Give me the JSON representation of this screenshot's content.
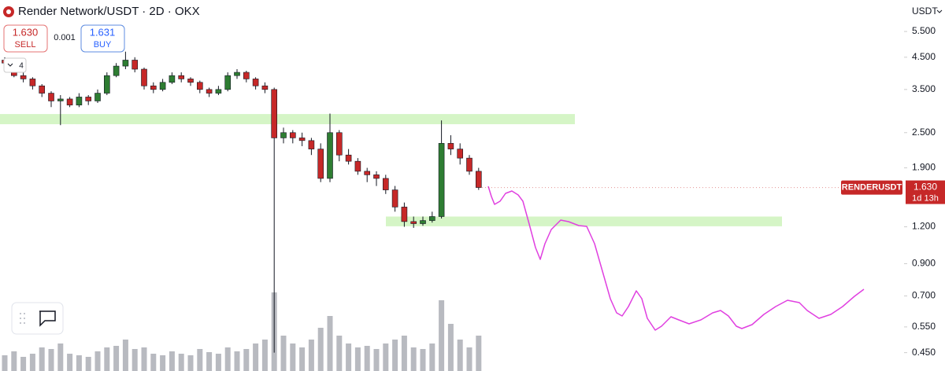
{
  "chart_data": {
    "type": "candlestick",
    "title": "Render Network/USDT · 2D · OKX",
    "sell_price": "1.630",
    "sell_label": "SELL",
    "spread": "0.001",
    "buy_price": "1.631",
    "buy_label": "BUY",
    "interval_count": "4",
    "currency": "USDT",
    "symbol": "RENDERUSDT",
    "last_price": {
      "value": 1.63,
      "label": "1.630"
    },
    "countdown": "1d 13h",
    "log_scale": true,
    "grid": false,
    "ylim": [
      0.39,
      7.03
    ],
    "yticks": [
      {
        "value": 5.5,
        "label": "5.500"
      },
      {
        "value": 4.5,
        "label": "4.500"
      },
      {
        "value": 3.5,
        "label": "3.500"
      },
      {
        "value": 2.5,
        "label": "2.500"
      },
      {
        "value": 1.9,
        "label": "1.900"
      },
      {
        "value": 1.2,
        "label": "1.200"
      },
      {
        "value": 0.9,
        "label": "0.900"
      },
      {
        "value": 0.7,
        "label": "0.700"
      },
      {
        "value": 0.55,
        "label": "0.550"
      },
      {
        "value": 0.45,
        "label": "0.450"
      }
    ],
    "up_color": "#2e7d32",
    "down_color": "#c62828",
    "volume_color": "#b8bac0",
    "zone_color": "#d5f5c6",
    "label_color": "#c62828",
    "zones": [
      {
        "low": 2.67,
        "high": 2.89
      },
      {
        "low": 1.205,
        "high": 1.3
      }
    ],
    "candles": [
      {
        "o": 4.4,
        "h": 4.5,
        "l": 4.2,
        "c": 4.3
      },
      {
        "o": 4.3,
        "h": 4.35,
        "l": 3.85,
        "c": 3.9
      },
      {
        "o": 3.9,
        "h": 4.0,
        "l": 3.7,
        "c": 3.8
      },
      {
        "o": 3.8,
        "h": 3.85,
        "l": 3.5,
        "c": 3.6
      },
      {
        "o": 3.6,
        "h": 3.65,
        "l": 3.3,
        "c": 3.4
      },
      {
        "o": 3.4,
        "h": 3.45,
        "l": 3.05,
        "c": 3.2
      },
      {
        "o": 3.2,
        "h": 3.35,
        "l": 2.65,
        "c": 3.25
      },
      {
        "o": 3.25,
        "h": 3.3,
        "l": 3.05,
        "c": 3.1
      },
      {
        "o": 3.1,
        "h": 3.4,
        "l": 3.05,
        "c": 3.3
      },
      {
        "o": 3.3,
        "h": 3.35,
        "l": 3.1,
        "c": 3.2
      },
      {
        "o": 3.2,
        "h": 3.5,
        "l": 3.15,
        "c": 3.4
      },
      {
        "o": 3.4,
        "h": 4.0,
        "l": 3.35,
        "c": 3.9
      },
      {
        "o": 3.9,
        "h": 4.3,
        "l": 3.85,
        "c": 4.2
      },
      {
        "o": 4.2,
        "h": 4.7,
        "l": 4.1,
        "c": 4.4
      },
      {
        "o": 4.4,
        "h": 4.5,
        "l": 4.0,
        "c": 4.1
      },
      {
        "o": 4.1,
        "h": 4.15,
        "l": 3.5,
        "c": 3.6
      },
      {
        "o": 3.6,
        "h": 3.7,
        "l": 3.4,
        "c": 3.5
      },
      {
        "o": 3.5,
        "h": 3.8,
        "l": 3.45,
        "c": 3.7
      },
      {
        "o": 3.7,
        "h": 4.0,
        "l": 3.65,
        "c": 3.9
      },
      {
        "o": 3.9,
        "h": 4.0,
        "l": 3.7,
        "c": 3.8
      },
      {
        "o": 3.8,
        "h": 3.85,
        "l": 3.6,
        "c": 3.7
      },
      {
        "o": 3.7,
        "h": 3.75,
        "l": 3.4,
        "c": 3.5
      },
      {
        "o": 3.5,
        "h": 3.55,
        "l": 3.3,
        "c": 3.4
      },
      {
        "o": 3.4,
        "h": 3.6,
        "l": 3.35,
        "c": 3.5
      },
      {
        "o": 3.5,
        "h": 4.0,
        "l": 3.45,
        "c": 3.9
      },
      {
        "o": 3.9,
        "h": 4.1,
        "l": 3.8,
        "c": 4.0
      },
      {
        "o": 4.0,
        "h": 4.05,
        "l": 3.7,
        "c": 3.8
      },
      {
        "o": 3.8,
        "h": 3.85,
        "l": 3.5,
        "c": 3.6
      },
      {
        "o": 3.6,
        "h": 3.7,
        "l": 3.4,
        "c": 3.5
      },
      {
        "o": 3.5,
        "h": 3.55,
        "l": 0.45,
        "c": 2.4
      },
      {
        "o": 2.4,
        "h": 2.6,
        "l": 2.3,
        "c": 2.5
      },
      {
        "o": 2.5,
        "h": 2.55,
        "l": 2.3,
        "c": 2.4
      },
      {
        "o": 2.4,
        "h": 2.5,
        "l": 2.25,
        "c": 2.35
      },
      {
        "o": 2.35,
        "h": 2.4,
        "l": 2.1,
        "c": 2.2
      },
      {
        "o": 2.2,
        "h": 2.3,
        "l": 1.7,
        "c": 1.75
      },
      {
        "o": 1.75,
        "h": 2.9,
        "l": 1.7,
        "c": 2.5
      },
      {
        "o": 2.5,
        "h": 2.55,
        "l": 2.0,
        "c": 2.1
      },
      {
        "o": 2.1,
        "h": 2.2,
        "l": 1.95,
        "c": 2.0
      },
      {
        "o": 2.0,
        "h": 2.05,
        "l": 1.8,
        "c": 1.85
      },
      {
        "o": 1.85,
        "h": 1.9,
        "l": 1.7,
        "c": 1.8
      },
      {
        "o": 1.8,
        "h": 1.85,
        "l": 1.65,
        "c": 1.75
      },
      {
        "o": 1.75,
        "h": 1.8,
        "l": 1.55,
        "c": 1.6
      },
      {
        "o": 1.6,
        "h": 1.65,
        "l": 1.35,
        "c": 1.4
      },
      {
        "o": 1.4,
        "h": 1.45,
        "l": 1.2,
        "c": 1.25
      },
      {
        "o": 1.25,
        "h": 1.3,
        "l": 1.19,
        "c": 1.23
      },
      {
        "o": 1.23,
        "h": 1.3,
        "l": 1.21,
        "c": 1.26
      },
      {
        "o": 1.26,
        "h": 1.35,
        "l": 1.24,
        "c": 1.3
      },
      {
        "o": 1.3,
        "h": 2.75,
        "l": 1.28,
        "c": 2.3
      },
      {
        "o": 2.3,
        "h": 2.45,
        "l": 2.1,
        "c": 2.2
      },
      {
        "o": 2.2,
        "h": 2.3,
        "l": 1.95,
        "c": 2.05
      },
      {
        "o": 2.05,
        "h": 2.1,
        "l": 1.8,
        "c": 1.85
      },
      {
        "o": 1.85,
        "h": 1.9,
        "l": 1.6,
        "c": 1.63
      }
    ],
    "volumes": [
      20,
      25,
      18,
      22,
      30,
      28,
      35,
      22,
      20,
      18,
      25,
      30,
      32,
      40,
      28,
      30,
      22,
      20,
      25,
      22,
      20,
      28,
      24,
      22,
      30,
      25,
      28,
      35,
      40,
      100,
      45,
      35,
      30,
      40,
      55,
      70,
      45,
      35,
      30,
      32,
      28,
      35,
      40,
      45,
      30,
      28,
      35,
      90,
      60,
      40,
      30,
      45
    ]
  }
}
